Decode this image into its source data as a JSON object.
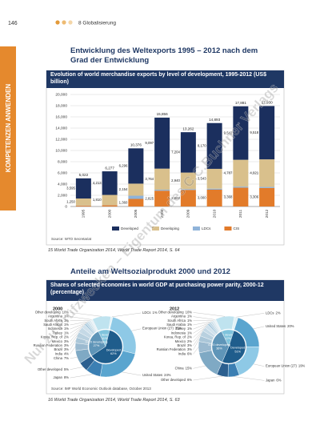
{
  "header": {
    "page_number": "146",
    "section": "8 Globalisierung"
  },
  "side_tab": "KOMPETENZEN ANWENDEN",
  "watermark": "Nur zu Prüfzwecken – Eigentum des C.C.Buchner Verlags",
  "section1": {
    "heading": "Entwicklung des Weltexports 1995 – 2012 nach dem Grad der Entwicklung",
    "footnote": "15 World Trade Organization 2014, World Trade Report 2014, S. 64"
  },
  "section2": {
    "heading": "Anteile am Weltsozialprodukt 2000 und 2012",
    "footnote": "16 World Trade Organization 2014, World Trade Report 2014, S. 63"
  },
  "chart_data": [
    {
      "type": "bar",
      "stacked": true,
      "grid": true,
      "legend": "bottom",
      "title": "Evolution of world merchandise exports by level of development, 1995-2012 (US$ billion)",
      "source": "Source: WTO Secretariat",
      "categories": [
        "1995",
        "2000",
        "2005",
        "2008",
        "2009",
        "2010",
        "2011",
        "2012"
      ],
      "series": [
        {
          "name": "Developed",
          "color": "#1b2f5e",
          "values": [
            3595,
            4213,
            6296,
            9097,
            7204,
            8170,
            9542,
            9518
          ],
          "value_labels": [
            "3,595",
            "4,213",
            "6,296",
            "9,097",
            "7,204",
            "8,170",
            "9,542",
            "9,518"
          ]
        },
        {
          "name": "Developing",
          "color": "#d9c08c",
          "values": [
            1250,
            1810,
            2154,
            3764,
            2940,
            3543,
            4787,
            4921
          ],
          "value_labels": [
            "1,250",
            "1,810",
            "2,154",
            "3,764",
            "2,940",
            "3,543",
            "4,787",
            "4,921"
          ]
        },
        {
          "name": "LDCs",
          "color": "#8fb3d9",
          "values": [
            40,
            40,
            566,
            170,
            150,
            180,
            184,
            185
          ]
        },
        {
          "name": "CIS",
          "color": "#e27b2a",
          "values": [
            137,
            214,
            1360,
            2825,
            2968,
            3000,
            3368,
            3306
          ],
          "value_labels": [
            null,
            null,
            "1,360",
            "2,825",
            "2,968",
            "3,000",
            "3,368",
            "3,306"
          ]
        }
      ],
      "totals": [
        5022,
        6277,
        10376,
        15856,
        13262,
        14893,
        17881,
        17930
      ],
      "total_labels": [
        "5,022",
        "6,277",
        "10,376",
        "15,856",
        "13,262",
        "14,893",
        "17,881",
        "17,930"
      ],
      "ylim": [
        0,
        20000
      ],
      "yticks": [
        0,
        {
          "value": 2000,
          "label": "2,000"
        },
        {
          "value": 4000,
          "label": "4,000"
        },
        {
          "value": 6000,
          "label": "6,000"
        },
        {
          "value": 8000,
          "label": "8,000"
        },
        {
          "value": 10000,
          "label": "10,000"
        },
        {
          "value": 12000,
          "label": "12,000"
        },
        {
          "value": 14000,
          "label": "14,000"
        },
        {
          "value": 16000,
          "label": "16,000"
        },
        {
          "value": 18000,
          "label": "18,000"
        },
        {
          "value": 20000,
          "label": "20,000"
        }
      ]
    },
    {
      "type": "pie",
      "title": "Shares of selected economies in world GDP at purchasing power parity, 2000-12 (percentage)",
      "source": "Source: IMF World Economic Outlook database, October 2013",
      "pies": [
        {
          "title": "2000",
          "outer": {
            "labels": [
              "Other developing",
              "LDCs",
              "European Union (27)",
              "United States",
              "Japan",
              "Other developed",
              "China",
              "India",
              "Brazil",
              "Russian Federation",
              "Mexico",
              "Korea, Rep. of",
              "Turkey",
              "Indonesia",
              "Saudi Arabia",
              "South Africa",
              "Argentina"
            ],
            "values": [
              10,
              1,
              25,
              24,
              8,
              5,
              7,
              4,
              3,
              3,
              3,
              2,
              1,
              1,
              1,
              1,
              1
            ],
            "value_labels": [
              "10%",
              "1%",
              "25%",
              "24%",
              "8%",
              "5%",
              "7%",
              "4%",
              "3%",
              "3%",
              "3%",
              "2%",
              "1%",
              "1%",
              "1%",
              "1%",
              "1%"
            ],
            "colors": [
              "#bfe3ef",
              "#e3f2f7",
              "#8ec9e6",
              "#5aa5cf",
              "#3b7fb3",
              "#2b5f8f",
              "#7fa9c4",
              "#9bbad0",
              "#aac6d8",
              "#b8d0df",
              "#c5d9e6",
              "#d0e1ec",
              "#a9c9dd",
              "#bcd6e5",
              "#cde0ea",
              "#dce9f0",
              "#e8f1f6"
            ]
          },
          "inner": {
            "labels": [
              "Other developing",
              "Developed",
              "G-20 developing"
            ],
            "values": [
              11,
              62,
              27
            ],
            "value_labels": [
              "11%",
              "62%",
              "27%"
            ],
            "colors": [
              "#7fc3dc",
              "#1f5d8c",
              "#5f95b8"
            ]
          }
        },
        {
          "title": "2012",
          "outer": {
            "labels": [
              "Other developing",
              "LDCs",
              "United States",
              "European Union (27)",
              "Japan",
              "Other developed",
              "China",
              "India",
              "Russian Federation",
              "Brazil",
              "Mexico",
              "Korea, Rep. of",
              "Indonesia",
              "Turkey",
              "Saudi Arabia",
              "South Africa",
              "Argentina"
            ],
            "values": [
              10,
              2,
              20,
              19,
              6,
              6,
              15,
              6,
              3,
              3,
              2,
              2,
              1,
              1,
              1,
              1,
              1
            ],
            "value_labels": [
              "10%",
              "2%",
              "20%",
              "19%",
              "6%",
              "6%",
              "15%",
              "6%",
              "3%",
              "3%",
              "2%",
              "2%",
              "1%",
              "1%",
              "1%",
              "1%",
              "1%"
            ],
            "colors": [
              "#bfe3ef",
              "#e3f2f7",
              "#5aa5cf",
              "#8ec9e6",
              "#3b7fb3",
              "#2b5f8f",
              "#7fa9c4",
              "#9bbad0",
              "#aac6d8",
              "#b8d0df",
              "#c5d9e6",
              "#d0e1ec",
              "#a9c9dd",
              "#bcd6e5",
              "#cde0ea",
              "#dce9f0",
              "#e8f1f6"
            ]
          },
          "inner": {
            "labels": [
              "Other developing",
              "Developed",
              "G-20 developing"
            ],
            "values": [
              12,
              51,
              36
            ],
            "value_labels": [
              "12%",
              "51%",
              "36%"
            ],
            "colors": [
              "#7fc3dc",
              "#1f5d8c",
              "#5f95b8"
            ]
          }
        }
      ]
    }
  ]
}
